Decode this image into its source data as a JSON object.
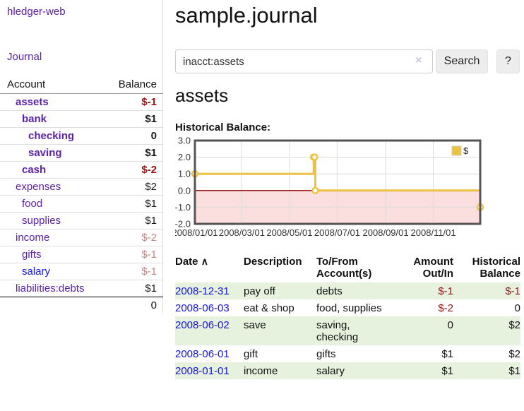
{
  "app": {
    "title": "hledger-web"
  },
  "sidebar": {
    "journal_link": "Journal",
    "accounts_table": {
      "account_header": "Account",
      "balance_header": "Balance",
      "rows": [
        {
          "name": "assets",
          "depth": 1,
          "bold": true,
          "balance": "$-1",
          "balance_style": "negative-strong",
          "link_style": "purple"
        },
        {
          "name": "bank",
          "depth": 2,
          "bold": true,
          "balance": "$1",
          "balance_style": "normal",
          "link_style": "purple"
        },
        {
          "name": "checking",
          "depth": 3,
          "bold": true,
          "balance": "0",
          "balance_style": "normal",
          "link_style": "purple"
        },
        {
          "name": "saving",
          "depth": 3,
          "bold": true,
          "balance": "$1",
          "balance_style": "normal",
          "link_style": "purple"
        },
        {
          "name": "cash",
          "depth": 2,
          "bold": true,
          "balance": "$-2",
          "balance_style": "negative-strong",
          "link_style": "purple"
        },
        {
          "name": "expenses",
          "depth": 1,
          "bold": false,
          "balance": "$2",
          "balance_style": "normal",
          "link_style": "purple"
        },
        {
          "name": "food",
          "depth": 2,
          "bold": false,
          "balance": "$1",
          "balance_style": "normal",
          "link_style": "purple"
        },
        {
          "name": "supplies",
          "depth": 2,
          "bold": false,
          "balance": "$1",
          "balance_style": "normal",
          "link_style": "purple"
        },
        {
          "name": "income",
          "depth": 1,
          "bold": false,
          "balance": "$-2",
          "balance_style": "negative-muted",
          "link_style": "purple"
        },
        {
          "name": "gifts",
          "depth": 2,
          "bold": false,
          "balance": "$-1",
          "balance_style": "negative-muted",
          "link_style": "purple"
        },
        {
          "name": "salary",
          "depth": 2,
          "bold": false,
          "balance": "$-1",
          "balance_style": "negative-muted",
          "link_style": "blue"
        },
        {
          "name": "liabilities:debts",
          "depth": 1,
          "bold": false,
          "balance": "$1",
          "balance_style": "normal",
          "link_style": "purple",
          "strong_bottom_border": true
        }
      ],
      "total": "0"
    }
  },
  "main": {
    "title": "sample.journal",
    "search": {
      "value": "inacct:assets",
      "clear_icon": "×",
      "search_button": "Search",
      "help_button": "?"
    },
    "account_heading": "assets",
    "chart_label": "Historical Balance:"
  },
  "chart_data": {
    "type": "line",
    "title": "Historical Balance:",
    "step": true,
    "series": [
      {
        "name": "$",
        "color": "#edc240",
        "points": [
          [
            "2008-01-01",
            1
          ],
          [
            "2008-06-01",
            2
          ],
          [
            "2008-06-02",
            2
          ],
          [
            "2008-06-03",
            0
          ],
          [
            "2008-12-31",
            -1
          ]
        ]
      }
    ],
    "x_start": "2008-01-01",
    "x_end": "2008-12-31",
    "x_tick_labels": [
      "2008/01/01",
      "2008/03/01",
      "2008/05/01",
      "2008/07/01",
      "2008/09/01",
      "2008/11/01"
    ],
    "y_ticks": [
      3.0,
      2.0,
      1.0,
      0.0,
      -1.0,
      -2.0
    ],
    "ylim": [
      -2,
      3
    ],
    "legend_position": "top-right",
    "legend_label": "$",
    "negative_region_fill": "#fbdede",
    "zero_line_color": "#8b0000",
    "grid_color": "#dcdcdc",
    "border_color": "#555555",
    "grid": true
  },
  "register": {
    "headers": {
      "date": "Date",
      "sort_icon": "∧",
      "description": "Description",
      "account_line1": "To/From",
      "account_line2": "Account(s)",
      "amount_line1": "Amount",
      "amount_line2": "Out/In",
      "balance_line1": "Historical",
      "balance_line2": "Balance"
    },
    "rows": [
      {
        "date": "2008-12-31",
        "description": "pay off",
        "accounts": "debts",
        "amount": "$-1",
        "balance": "$-1",
        "amount_negative": true,
        "balance_negative": true
      },
      {
        "date": "2008-06-03",
        "description": "eat & shop",
        "accounts": "food, supplies",
        "amount": "$-2",
        "balance": "0",
        "amount_negative": true,
        "balance_negative": false
      },
      {
        "date": "2008-06-02",
        "description": "save",
        "accounts": "saving,\nchecking",
        "amount": "0",
        "balance": "$2",
        "amount_negative": false,
        "balance_negative": false
      },
      {
        "date": "2008-06-01",
        "description": "gift",
        "accounts": "gifts",
        "amount": "$1",
        "balance": "$2",
        "amount_negative": false,
        "balance_negative": false
      },
      {
        "date": "2008-01-01",
        "description": "income",
        "accounts": "salary",
        "amount": "$1",
        "balance": "$1",
        "amount_negative": false,
        "balance_negative": false
      }
    ]
  }
}
